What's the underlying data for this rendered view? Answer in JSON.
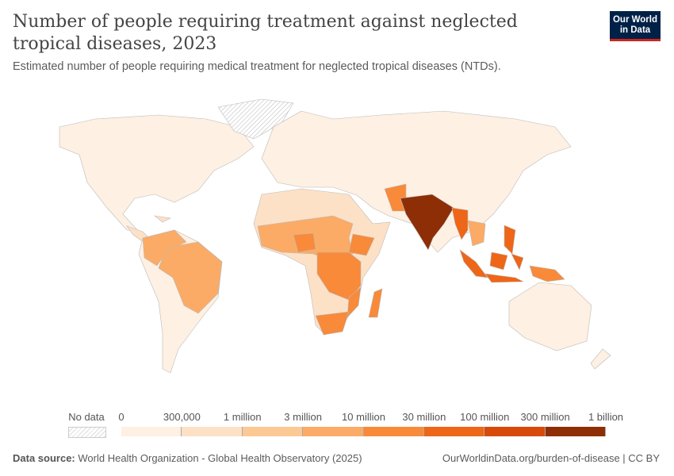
{
  "header": {
    "title": "Number of people requiring treatment against neglected tropical diseases, 2023",
    "subtitle": "Estimated number of people requiring medical treatment for neglected tropical diseases (NTDs).",
    "logo": "Our World in Data"
  },
  "legend": {
    "no_data": "No data",
    "ticks": [
      "0",
      "300,000",
      "1 million",
      "3 million",
      "10 million",
      "30 million",
      "100 million",
      "300 million",
      "1 billion"
    ],
    "colors": [
      "#fef0e2",
      "#fde1c6",
      "#fcc995",
      "#fbab66",
      "#f88a3a",
      "#ee6618",
      "#d84a09",
      "#8e2e06"
    ],
    "no_data_color": "hatched"
  },
  "map_data": [
    {
      "region": "North America",
      "bin": 0
    },
    {
      "region": "Greenland",
      "bin": null
    },
    {
      "region": "Central America",
      "bin": 1
    },
    {
      "region": "South America",
      "bin": 0
    },
    {
      "region": "Brazil",
      "bin": 3
    },
    {
      "region": "Colombia/Venezuela",
      "bin": 3
    },
    {
      "region": "Africa",
      "bin": 1
    },
    {
      "region": "West Africa & Sahel",
      "bin": 3
    },
    {
      "region": "Central/East Africa",
      "bin": 4
    },
    {
      "region": "Nigeria",
      "bin": 4
    },
    {
      "region": "Ethiopia",
      "bin": 4
    },
    {
      "region": "Madagascar",
      "bin": 4
    },
    {
      "region": "Mozambique",
      "bin": 4
    },
    {
      "region": "South Africa",
      "bin": 4
    },
    {
      "region": "Eurasia",
      "bin": 0
    },
    {
      "region": "Pakistan/Afghanistan",
      "bin": 4
    },
    {
      "region": "India",
      "bin": 7
    },
    {
      "region": "Myanmar/Bangladesh",
      "bin": 5
    },
    {
      "region": "Southeast Asia",
      "bin": 3
    },
    {
      "region": "Philippines",
      "bin": 5
    },
    {
      "region": "Indonesia",
      "bin": 5
    },
    {
      "region": "Papua New Guinea",
      "bin": 4
    },
    {
      "region": "Australia",
      "bin": 0
    },
    {
      "region": "New Zealand",
      "bin": 0
    }
  ],
  "footer": {
    "source_label": "Data source:",
    "source": "World Health Organization - Global Health Observatory (2025)",
    "link": "OurWorldinData.org/burden-of-disease | CC BY"
  }
}
